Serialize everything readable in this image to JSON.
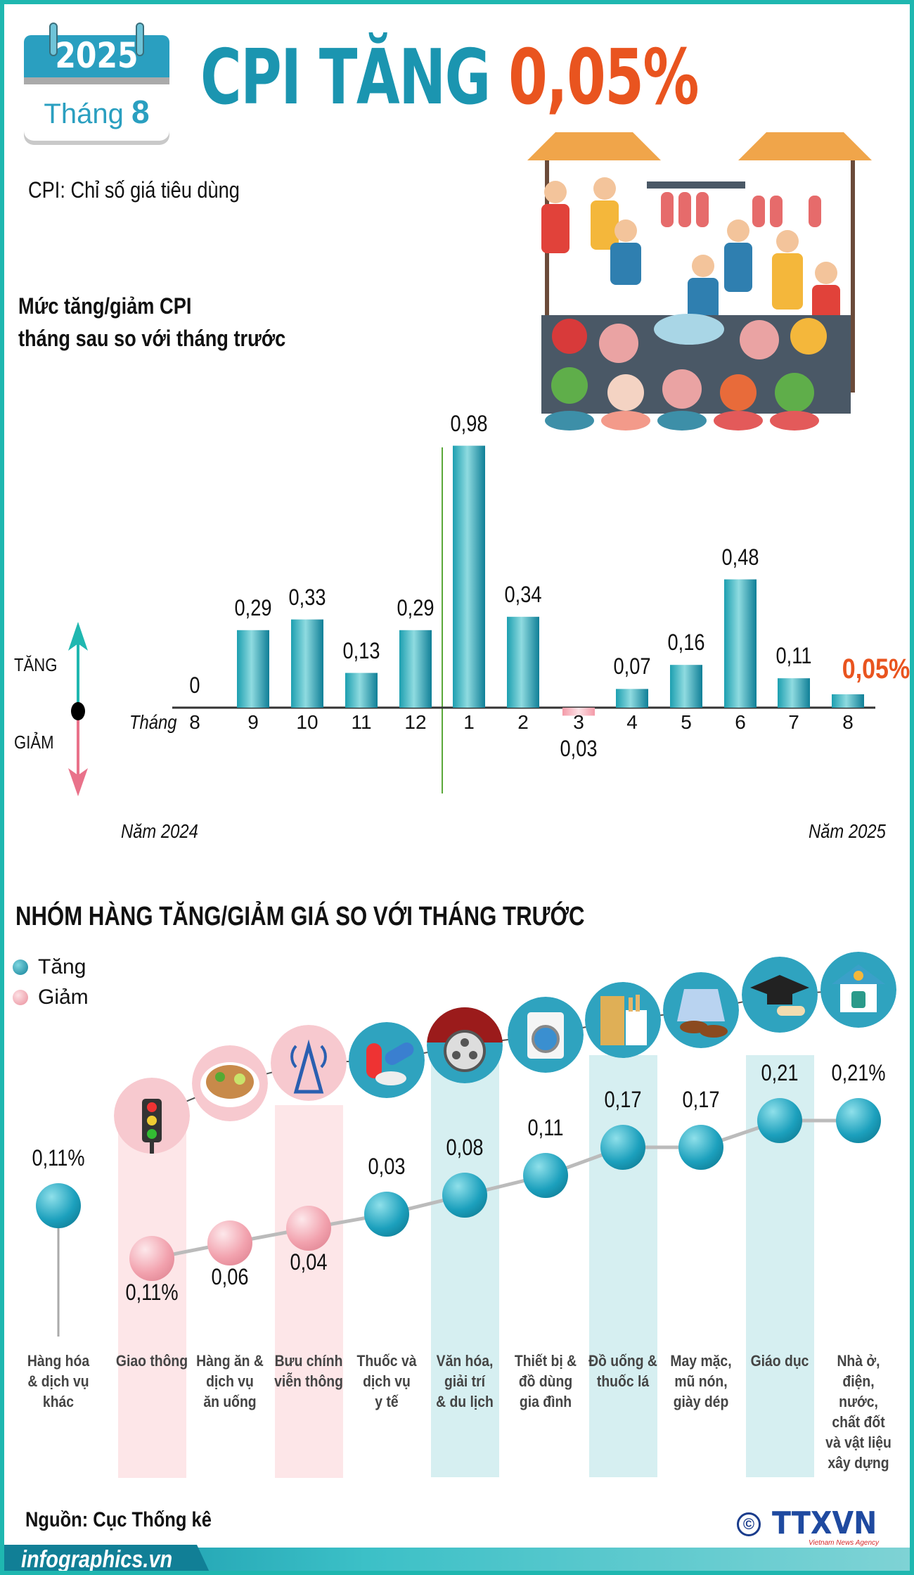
{
  "header": {
    "year": "2025",
    "month_label": "Tháng",
    "month_num": "8",
    "title_main": "CPI TĂNG",
    "title_value": "0,05%",
    "definition": "CPI: Chỉ số giá tiêu dùng"
  },
  "chart1": {
    "subtitle_line1": "Mức tăng/giảm CPI",
    "subtitle_line2": "tháng sau so với tháng trước",
    "up_label": "TĂNG",
    "down_label": "GIẢM",
    "x_prefix": "Tháng",
    "year_left": "Năm 2024",
    "year_right": "Năm 2025"
  },
  "chart2": {
    "title": "NHÓM HÀNG TĂNG/GIẢM GIÁ SO VỚI THÁNG TRƯỚC",
    "legend_up": "Tăng",
    "legend_down": "Giảm"
  },
  "footer": {
    "source": "Nguồn: Cục Thống kê",
    "site": "infographics.vn",
    "logo": "TTXVN",
    "logo_sub": "Vietnam News Agency"
  },
  "colors": {
    "teal": "#1b95b0",
    "orange": "#e9541f",
    "pink": "#f2a9b4",
    "band_pink": "#fde6e8",
    "band_teal": "#d6eff1"
  },
  "chart_data": [
    {
      "type": "bar",
      "title": "Mức tăng/giảm CPI tháng sau so với tháng trước",
      "categories": [
        "8",
        "9",
        "10",
        "11",
        "12",
        "1",
        "2",
        "3",
        "4",
        "5",
        "6",
        "7",
        "8"
      ],
      "labels": [
        "0",
        "0,29",
        "0,33",
        "0,13",
        "0,29",
        "0,98",
        "0,34",
        "0,03",
        "0,07",
        "0,16",
        "0,48",
        "0,11",
        "0,05%"
      ],
      "values": [
        0,
        0.29,
        0.33,
        0.13,
        0.29,
        0.98,
        0.34,
        -0.03,
        0.07,
        0.16,
        0.48,
        0.11,
        0.05
      ],
      "highlight_last": true
    },
    {
      "type": "line",
      "title": "NHÓM HÀNG TĂNG/GIẢM GIÁ SO VỚI THÁNG TRƯỚC",
      "categories": [
        "Hàng hóa & dịch vụ khác",
        "Giao thông",
        "Hàng ăn & dịch vụ ăn uống",
        "Bưu chính viễn thông",
        "Thuốc và dịch vụ y tế",
        "Văn hóa, giải trí & du lịch",
        "Thiết bị & đồ dùng gia đình",
        "Đồ uống & thuốc lá",
        "May mặc, mũ nón, giày dép",
        "Giáo dục",
        "Nhà ở, điện, nước, chất đốt và vật liệu xây dựng"
      ],
      "cat_lines": [
        [
          "Hàng hóa",
          "& dịch vụ",
          "khác"
        ],
        [
          "Giao thông"
        ],
        [
          "Hàng ăn &",
          "dịch vụ",
          "ăn uống"
        ],
        [
          "Bưu chính",
          "viễn thông"
        ],
        [
          "Thuốc và",
          "dịch vụ",
          "y tế"
        ],
        [
          "Văn hóa,",
          "giải trí",
          "& du lịch"
        ],
        [
          "Thiết bị &",
          "đồ dùng",
          "gia đình"
        ],
        [
          "Đồ uống &",
          "thuốc lá"
        ],
        [
          "May mặc,",
          "mũ nón,",
          "giày dép"
        ],
        [
          "Giáo dục"
        ],
        [
          "Nhà ở,",
          "điện, nước,",
          "chất đốt",
          "và vật liệu",
          "xây dựng"
        ]
      ],
      "labels": [
        "0,11%",
        "0,11%",
        "0,06",
        "0,04",
        "0,03",
        "0,08",
        "0,11",
        "0,17",
        "0,17",
        "0,21",
        "0,21%"
      ],
      "values": [
        0.11,
        -0.11,
        -0.06,
        -0.04,
        0.03,
        0.08,
        0.11,
        0.17,
        0.17,
        0.21,
        0.21
      ],
      "icons": [
        "none",
        "traffic-light-icon",
        "noodle-bowl-icon",
        "antenna-tower-icon",
        "pills-icon",
        "film-reel-icon",
        "washing-machine-icon",
        "drink-cigarette-icon",
        "clothes-shoes-icon",
        "graduation-cap-icon",
        "house-utilities-icon"
      ]
    }
  ]
}
